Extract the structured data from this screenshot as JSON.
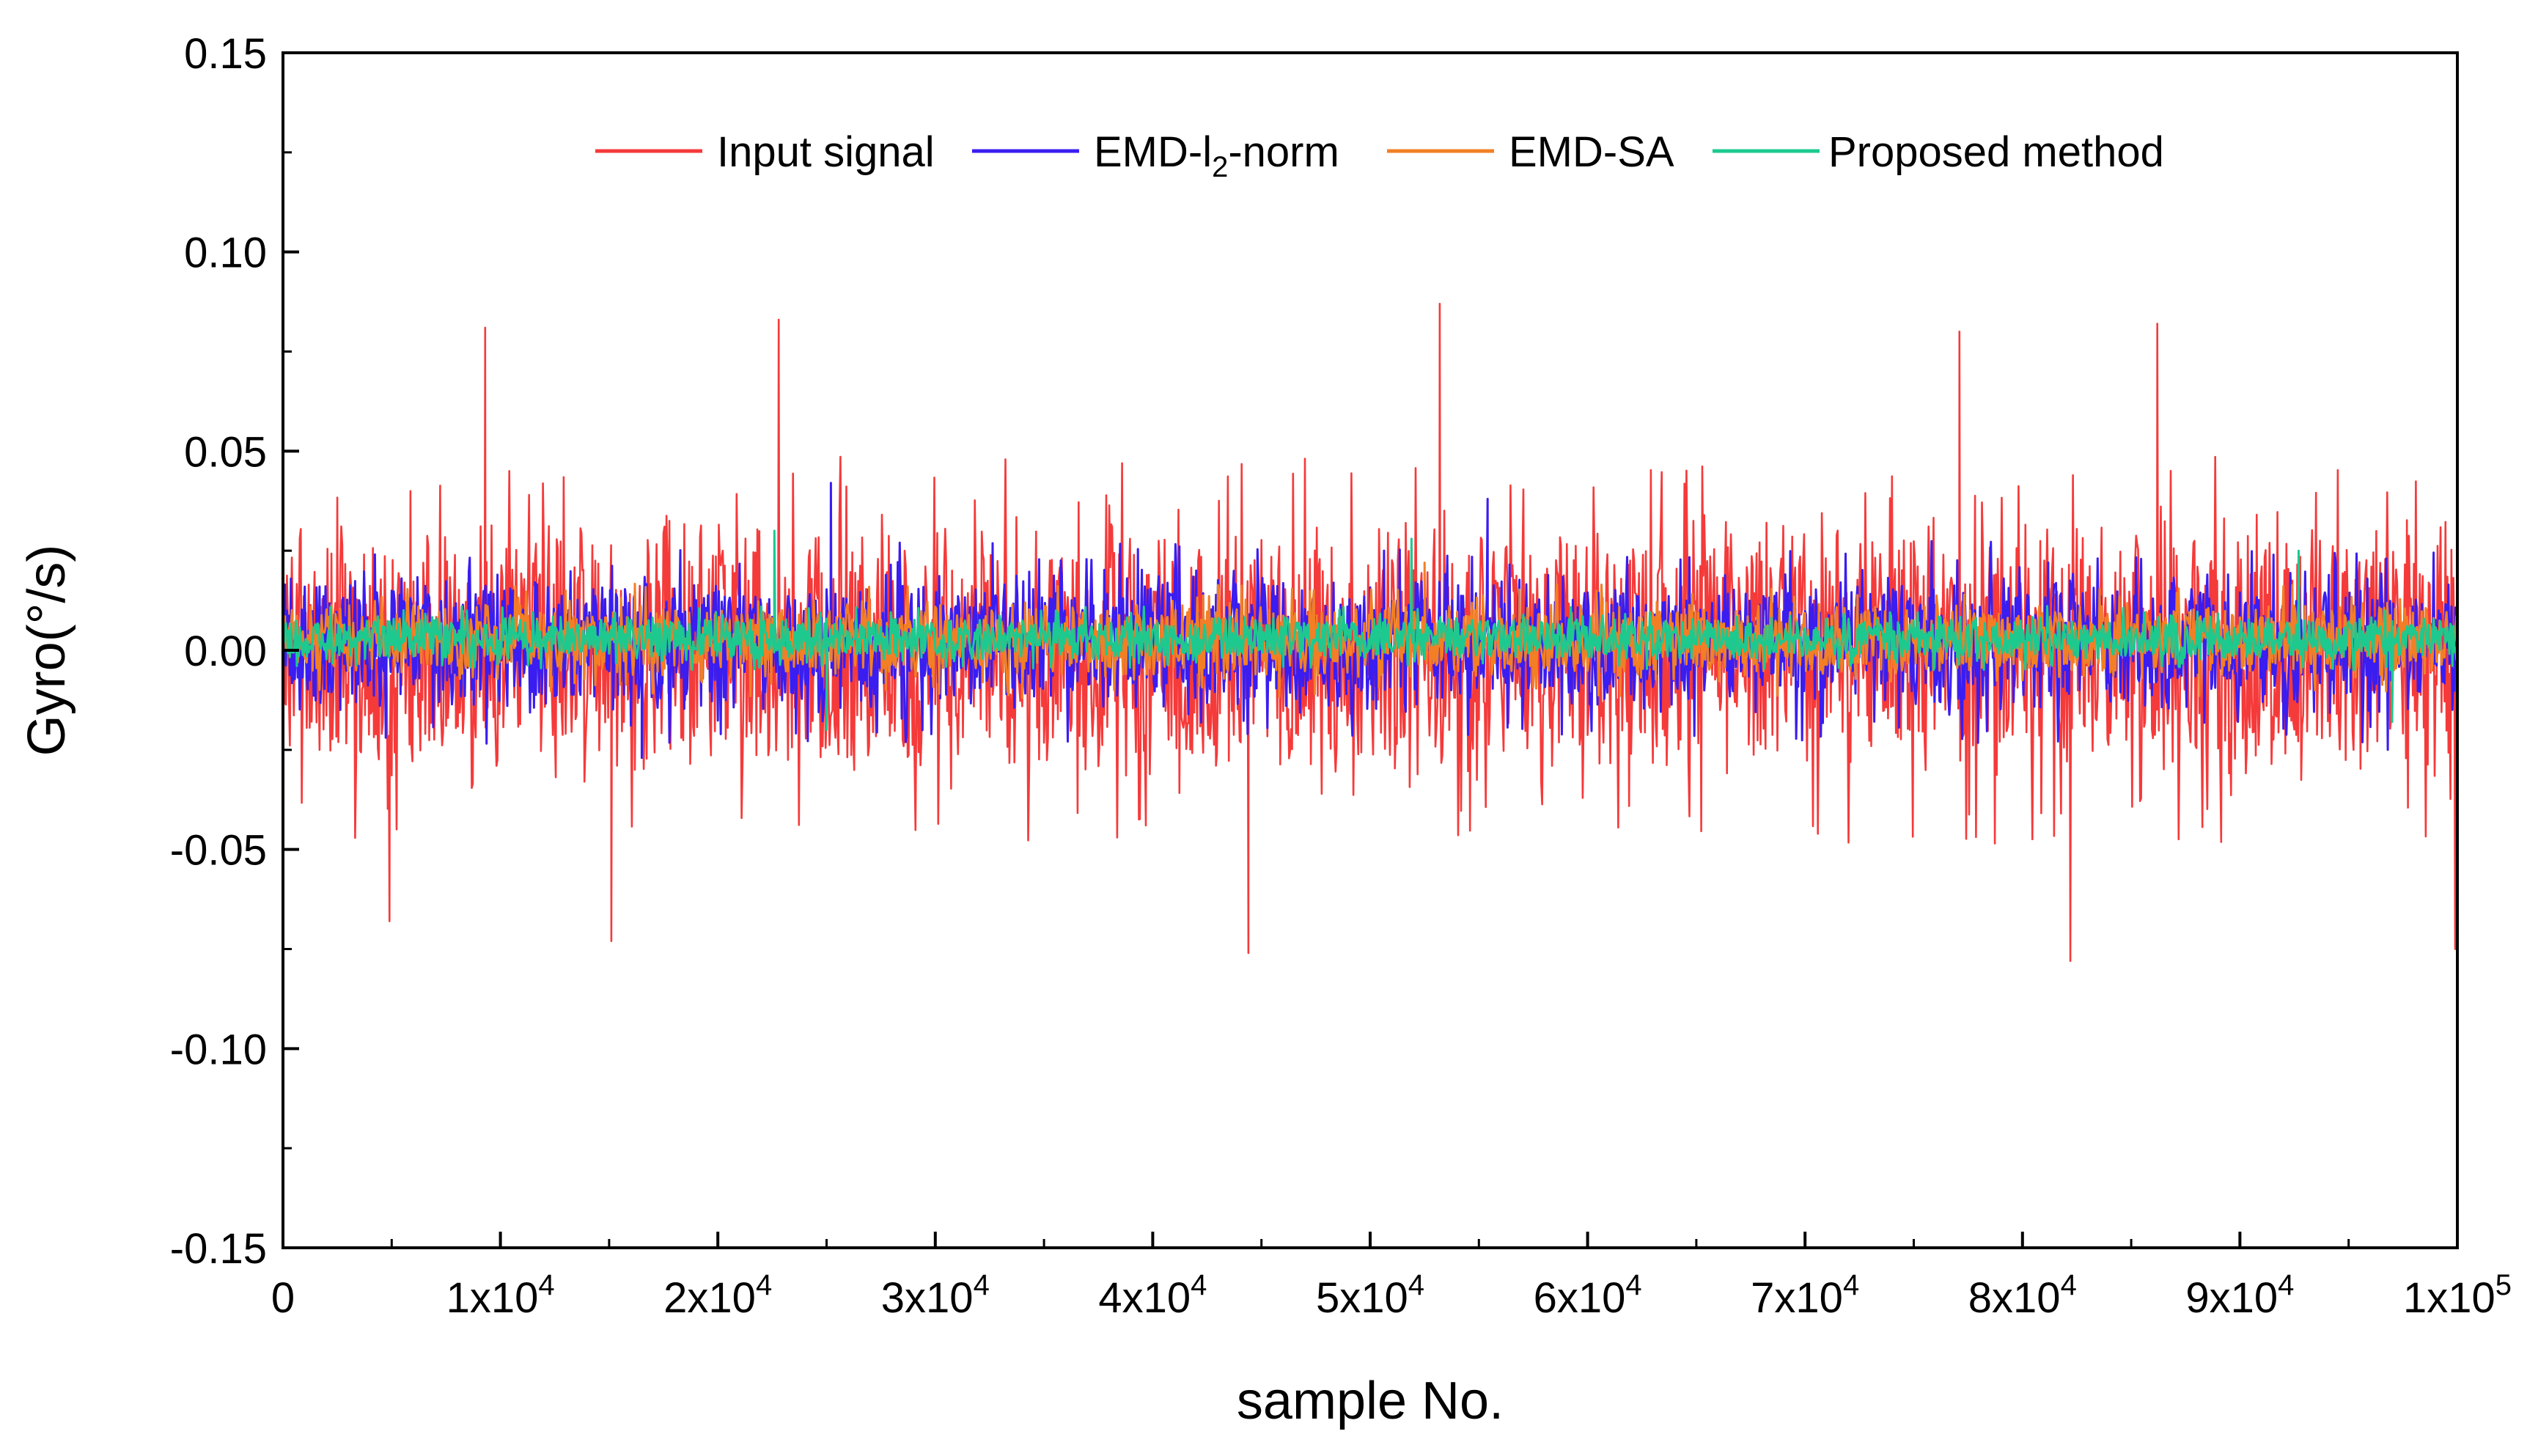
{
  "chart_data": {
    "type": "line",
    "title": "",
    "xlabel": "sample No.",
    "ylabel": "Gyro(°/s)",
    "xlim": [
      0,
      100000
    ],
    "ylim": [
      -0.15,
      0.15
    ],
    "x_ticks": [
      {
        "value": 0,
        "base": "0",
        "exp": ""
      },
      {
        "value": 10000,
        "base": "1x10",
        "exp": "4"
      },
      {
        "value": 20000,
        "base": "2x10",
        "exp": "4"
      },
      {
        "value": 30000,
        "base": "3x10",
        "exp": "4"
      },
      {
        "value": 40000,
        "base": "4x10",
        "exp": "4"
      },
      {
        "value": 50000,
        "base": "5x10",
        "exp": "4"
      },
      {
        "value": 60000,
        "base": "6x10",
        "exp": "4"
      },
      {
        "value": 70000,
        "base": "7x10",
        "exp": "4"
      },
      {
        "value": 80000,
        "base": "8x10",
        "exp": "4"
      },
      {
        "value": 90000,
        "base": "9x10",
        "exp": "4"
      },
      {
        "value": 100000,
        "base": "1x10",
        "exp": "5"
      }
    ],
    "y_ticks": [
      {
        "value": 0.15,
        "label": "0.15"
      },
      {
        "value": 0.1,
        "label": "0.10"
      },
      {
        "value": 0.05,
        "label": "0.05"
      },
      {
        "value": 0.0,
        "label": "0.00"
      },
      {
        "value": -0.05,
        "label": "-0.05"
      },
      {
        "value": -0.1,
        "label": "-0.10"
      },
      {
        "value": -0.15,
        "label": "-0.15"
      }
    ],
    "legend_position": "top-center",
    "series": [
      {
        "name": "Input signal",
        "color": "#f53a3a",
        "mean": 0.0,
        "band_min": -0.036,
        "band_max": 0.036,
        "peaks": [
          [
            9300,
            0.081
          ],
          [
            22800,
            0.083
          ],
          [
            53200,
            0.087
          ],
          [
            77100,
            0.08
          ],
          [
            86200,
            0.082
          ]
        ],
        "troughs": [
          [
            4900,
            -0.068
          ],
          [
            15100,
            -0.073
          ],
          [
            44400,
            -0.076
          ],
          [
            82200,
            -0.078
          ],
          [
            99900,
            -0.075
          ]
        ]
      },
      {
        "name": "EMD-l2-norm",
        "label_pre": "EMD-l",
        "label_sub": "2",
        "label_post": "-norm",
        "color": "#3a1df0",
        "mean": 0.002,
        "band_min": -0.017,
        "band_max": 0.021,
        "peaks": [
          [
            25200,
            0.042
          ],
          [
            55400,
            0.038
          ]
        ],
        "troughs": [
          [
            16500,
            -0.027
          ],
          [
            96800,
            -0.025
          ]
        ]
      },
      {
        "name": "EMD-SA",
        "color": "#f27f26",
        "mean": 0.003,
        "band_min": -0.008,
        "band_max": 0.013,
        "peaks": [
          [
            52500,
            0.022
          ]
        ],
        "troughs": [
          [
            34000,
            -0.012
          ]
        ]
      },
      {
        "name": "Proposed method",
        "color": "#1dc98f",
        "mean": 0.003,
        "band_min": -0.003,
        "band_max": 0.009,
        "peaks": [
          [
            22600,
            0.03
          ],
          [
            51900,
            0.028
          ],
          [
            92700,
            0.025
          ]
        ],
        "troughs": [
          [
            25000,
            -0.02
          ],
          [
            97000,
            -0.018
          ]
        ]
      }
    ]
  }
}
